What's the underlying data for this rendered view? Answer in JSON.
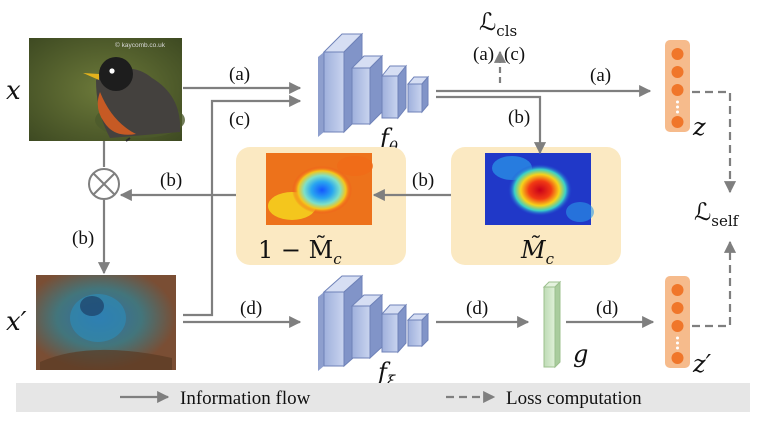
{
  "colors": {
    "arrow": "#7f7f7f",
    "encoder_fill": "#b7c5e6",
    "encoder_edge": "#6f82b8",
    "projector_fill": "#cfe6c8",
    "embedding_fill": "#f6b98a",
    "embedding_dot": "#f0762a",
    "mask_panel": "#fbe9c2",
    "legend_bg": "#e6e6e6"
  },
  "inputs": {
    "x_label": "x",
    "x_prime_label": "x′",
    "watermark": "© kaycomb.co.uk"
  },
  "encoders": {
    "f_theta": {
      "base": "f",
      "sub": "θ"
    },
    "f_xi": {
      "base": "f",
      "sub": "ξ"
    }
  },
  "projector": {
    "label": "g"
  },
  "embeddings": {
    "z": "z",
    "z_prime": "z′"
  },
  "losses": {
    "cls": {
      "base": "ℒ",
      "sub": "cls"
    },
    "self": {
      "base": "ℒ",
      "sub": "self"
    }
  },
  "masks": {
    "inverse": "1 − M̃",
    "inverse_sub": "c",
    "saliency": "M̃",
    "saliency_sub": "c"
  },
  "flow_labels": {
    "x_to_encoder": "(a)",
    "c_to_encoder": "(c)",
    "cls_a": "(a)",
    "cls_c": "(c)",
    "encoder_to_z": "(a)",
    "encoder_to_mask": "(b)",
    "mask_to_inverse": "(b)",
    "inverse_to_mult": "(b)",
    "mult_to_xprime": "(b)",
    "xprime_to_encoder": "(d)",
    "encoder_to_g": "(d)",
    "g_to_z": "(d)"
  },
  "legend": {
    "solid": "Information flow",
    "dashed": "Loss computation"
  }
}
